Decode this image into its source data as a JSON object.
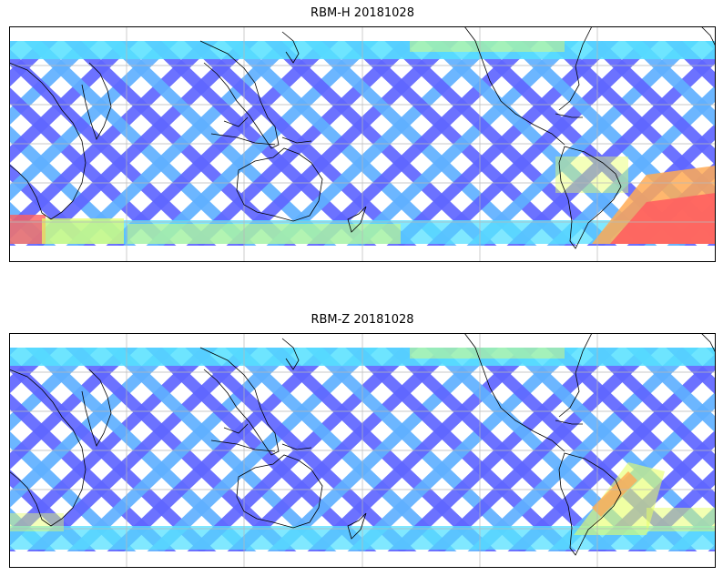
{
  "figure": {
    "panels": [
      {
        "id": "h",
        "title": "RBM-H 20181028",
        "hot_region": "strong"
      },
      {
        "id": "z",
        "title": "RBM-Z 20181028",
        "hot_region": "weak"
      }
    ]
  },
  "colors": {
    "swath_base": "#5f66ff",
    "swath_mid": "#5fb0ff",
    "swath_cyan": "#55e0ff",
    "swath_yellow": "#e6ff66",
    "swath_orange": "#ffaa55",
    "swath_red": "#ff5f5f",
    "coastline": "#000000",
    "grid": "#b8b8b8"
  }
}
